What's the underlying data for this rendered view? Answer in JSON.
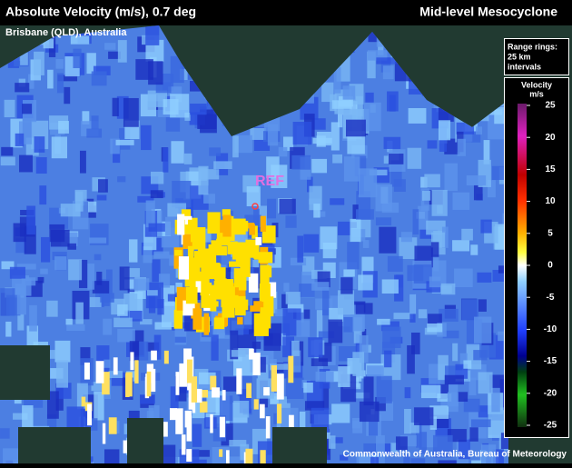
{
  "header": {
    "title": "Absolute Velocity (m/s), 0.7 deg",
    "feature": "Mid-level Mesocyclone",
    "location": "Brisbane (QLD), Australia"
  },
  "range_rings": {
    "line1": "Range rings:",
    "line2": "25 km",
    "line3": "intervals"
  },
  "legend": {
    "title": "Velocity",
    "unit": "m/s",
    "min": -25,
    "max": 25,
    "ticks": [
      25,
      20,
      15,
      10,
      5,
      0,
      -5,
      -10,
      -15,
      -20,
      -25
    ]
  },
  "marker": {
    "label": "REF"
  },
  "credit": "Commonwealth of Australia, Bureau of Meteorology"
}
